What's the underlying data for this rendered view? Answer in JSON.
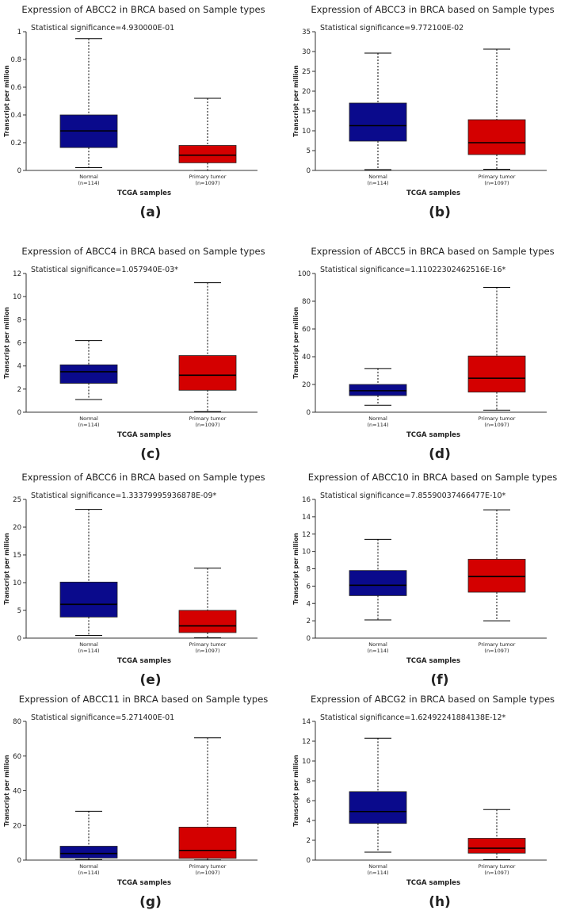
{
  "figure": {
    "panel_count": 8
  },
  "colors": {
    "normal_box": "#0a0a8c",
    "tumor_box": "#d40000",
    "axis": "#333333",
    "median": "#000000",
    "text": "#222222"
  },
  "chart_data": [
    {
      "type": "box",
      "panel_label": "(a)",
      "title": "Expression of ABCC2 in BRCA based on Sample types",
      "significance": "Statistical significance=4.930000E-01",
      "ylabel": "Transcript per million",
      "xlabel": "TCGA samples",
      "ylim": [
        0,
        1
      ],
      "yticks": [
        "0",
        "0.2",
        "0.4",
        "0.6",
        "0.8",
        "1"
      ],
      "ytick_values": [
        0,
        0.2,
        0.4,
        0.6,
        0.8,
        1
      ],
      "categories": [
        {
          "name": "Normal",
          "n": "(n=114)",
          "min": 0.02,
          "q1": 0.165,
          "median": 0.285,
          "q3": 0.4,
          "max": 0.95
        },
        {
          "name": "Primary tumor",
          "n": "(n=1097)",
          "min": 0.0,
          "q1": 0.055,
          "median": 0.11,
          "q3": 0.18,
          "max": 0.52
        }
      ]
    },
    {
      "type": "box",
      "panel_label": "(b)",
      "title": "Expression of ABCC3 in BRCA based on Sample types",
      "significance": "Statistical significance=9.772100E-02",
      "ylabel": "Transcript per million",
      "xlabel": "TCGA samples",
      "ylim": [
        0,
        35
      ],
      "yticks": [
        "0",
        "5",
        "10",
        "15",
        "20",
        "25",
        "30",
        "35"
      ],
      "ytick_values": [
        0,
        5,
        10,
        15,
        20,
        25,
        30,
        35
      ],
      "categories": [
        {
          "name": "Normal",
          "n": "(n=114)",
          "min": 0.2,
          "q1": 7.4,
          "median": 11.3,
          "q3": 17.0,
          "max": 29.6
        },
        {
          "name": "Primary tumor",
          "n": "(n=1097)",
          "min": 0.3,
          "q1": 4.0,
          "median": 7.0,
          "q3": 12.8,
          "max": 30.6
        }
      ]
    },
    {
      "type": "box",
      "panel_label": "(c)",
      "title": "Expression of ABCC4 in BRCA based on Sample types",
      "significance": "Statistical significance=1.057940E-03*",
      "ylabel": "Transcript per million",
      "xlabel": "TCGA samples",
      "ylim": [
        0,
        12
      ],
      "yticks": [
        "0",
        "2",
        "4",
        "6",
        "8",
        "10",
        "12"
      ],
      "ytick_values": [
        0,
        2,
        4,
        6,
        8,
        10,
        12
      ],
      "categories": [
        {
          "name": "Normal",
          "n": "(n=114)",
          "min": 1.1,
          "q1": 2.5,
          "median": 3.5,
          "q3": 4.1,
          "max": 6.2
        },
        {
          "name": "Primary tumor",
          "n": "(n=1097)",
          "min": 0.05,
          "q1": 1.9,
          "median": 3.2,
          "q3": 4.9,
          "max": 11.2
        }
      ]
    },
    {
      "type": "box",
      "panel_label": "(d)",
      "title": "Expression of ABCC5 in BRCA based on Sample types",
      "significance": "Statistical significance=1.11022302462516E-16*",
      "ylabel": "Transcript per million",
      "xlabel": "TCGA samples",
      "ylim": [
        0,
        100
      ],
      "yticks": [
        "0",
        "20",
        "40",
        "60",
        "80",
        "100"
      ],
      "ytick_values": [
        0,
        20,
        40,
        60,
        80,
        100
      ],
      "categories": [
        {
          "name": "Normal",
          "n": "(n=114)",
          "min": 5,
          "q1": 12,
          "median": 15.5,
          "q3": 20,
          "max": 31.5
        },
        {
          "name": "Primary tumor",
          "n": "(n=1097)",
          "min": 1.5,
          "q1": 14.5,
          "median": 24.5,
          "q3": 40.5,
          "max": 90
        }
      ]
    },
    {
      "type": "box",
      "panel_label": "(e)",
      "title": "Expression of ABCC6 in BRCA based on Sample types",
      "significance": "Statistical significance=1.33379995936878E-09*",
      "ylabel": "Transcript per million",
      "xlabel": "TCGA samples",
      "ylim": [
        0,
        25
      ],
      "yticks": [
        "0",
        "5",
        "10",
        "15",
        "20",
        "25"
      ],
      "ytick_values": [
        0,
        5,
        10,
        15,
        20,
        25
      ],
      "categories": [
        {
          "name": "Normal",
          "n": "(n=114)",
          "min": 0.5,
          "q1": 3.8,
          "median": 6.1,
          "q3": 10.1,
          "max": 23.2
        },
        {
          "name": "Primary tumor",
          "n": "(n=1097)",
          "min": 0.05,
          "q1": 1.0,
          "median": 2.2,
          "q3": 5.0,
          "max": 12.6
        }
      ]
    },
    {
      "type": "box",
      "panel_label": "(f)",
      "title": "Expression of ABCC10 in BRCA based on Sample types",
      "significance": "Statistical significance=7.85590037466477E-10*",
      "ylabel": "Transcript per million",
      "xlabel": "TCGA samples",
      "ylim": [
        0,
        16
      ],
      "yticks": [
        "0",
        "2",
        "4",
        "6",
        "8",
        "10",
        "12",
        "14",
        "16"
      ],
      "ytick_values": [
        0,
        2,
        4,
        6,
        8,
        10,
        12,
        14,
        16
      ],
      "categories": [
        {
          "name": "Normal",
          "n": "(n=114)",
          "min": 2.1,
          "q1": 4.9,
          "median": 6.1,
          "q3": 7.8,
          "max": 11.4
        },
        {
          "name": "Primary tumor",
          "n": "(n=1097)",
          "min": 2.0,
          "q1": 5.3,
          "median": 7.1,
          "q3": 9.1,
          "max": 14.8
        }
      ]
    },
    {
      "type": "box",
      "panel_label": "(g)",
      "title": "Expression of ABCC11 in BRCA based on Sample types",
      "significance": "Statistical significance=5.271400E-01",
      "ylabel": "Transcript per million",
      "xlabel": "TCGA samples",
      "ylim": [
        0,
        80
      ],
      "yticks": [
        "0",
        "20",
        "40",
        "60",
        "80"
      ],
      "ytick_values": [
        0,
        20,
        40,
        60,
        80
      ],
      "categories": [
        {
          "name": "Normal",
          "n": "(n=114)",
          "min": 0.3,
          "q1": 1.2,
          "median": 3.8,
          "q3": 8.0,
          "max": 28.2
        },
        {
          "name": "Primary tumor",
          "n": "(n=1097)",
          "min": 0.1,
          "q1": 1.0,
          "median": 5.6,
          "q3": 19.0,
          "max": 70.5
        }
      ]
    },
    {
      "type": "box",
      "panel_label": "(h)",
      "title": "Expression of ABCG2 in BRCA based on Sample types",
      "significance": "Statistical significance=1.62492241884138E-12*",
      "ylabel": "Transcript per million",
      "xlabel": "TCGA samples",
      "ylim": [
        0,
        14
      ],
      "yticks": [
        "0",
        "2",
        "4",
        "6",
        "8",
        "10",
        "12",
        "14"
      ],
      "ytick_values": [
        0,
        2,
        4,
        6,
        8,
        10,
        12,
        14
      ],
      "categories": [
        {
          "name": "Normal",
          "n": "(n=114)",
          "min": 0.8,
          "q1": 3.7,
          "median": 4.9,
          "q3": 6.9,
          "max": 12.3
        },
        {
          "name": "Primary tumor",
          "n": "(n=1097)",
          "min": 0.05,
          "q1": 0.7,
          "median": 1.2,
          "q3": 2.2,
          "max": 5.1
        }
      ]
    }
  ]
}
